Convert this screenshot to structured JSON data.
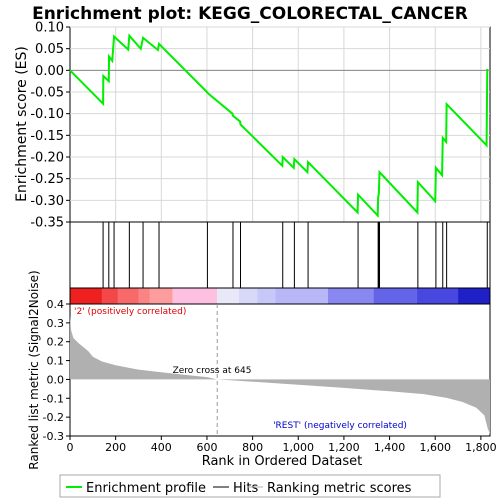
{
  "chart_data": {
    "type": "line",
    "title": "Enrichment plot: KEGG_COLORECTAL_CANCER",
    "es_panel": {
      "ylabel": "Enrichment score (ES)",
      "ylim": [
        -0.35,
        0.1
      ],
      "yticks": [
        0.1,
        0.05,
        0.0,
        -0.05,
        -0.1,
        -0.15,
        -0.2,
        -0.25,
        -0.3,
        -0.35
      ],
      "ytick_labels": [
        "0.10",
        "0.05",
        "0.00",
        "-0.05",
        "-0.10",
        "-0.15",
        "-0.20",
        "-0.25",
        "-0.30",
        "-0.35"
      ],
      "series_color": "#00ee00",
      "points": [
        [
          0,
          0.0
        ],
        [
          145,
          -0.077
        ],
        [
          146,
          -0.013
        ],
        [
          170,
          -0.025
        ],
        [
          171,
          0.032
        ],
        [
          185,
          0.022
        ],
        [
          193,
          0.078
        ],
        [
          255,
          0.048
        ],
        [
          260,
          0.08
        ],
        [
          310,
          0.05
        ],
        [
          320,
          0.075
        ],
        [
          385,
          0.047
        ],
        [
          390,
          0.061
        ],
        [
          600,
          -0.05
        ],
        [
          602,
          -0.052
        ],
        [
          712,
          -0.1
        ],
        [
          714,
          -0.105
        ],
        [
          745,
          -0.118
        ],
        [
          747,
          -0.125
        ],
        [
          930,
          -0.22
        ],
        [
          932,
          -0.2
        ],
        [
          980,
          -0.225
        ],
        [
          983,
          -0.205
        ],
        [
          1040,
          -0.235
        ],
        [
          1043,
          -0.212
        ],
        [
          1260,
          -0.328
        ],
        [
          1262,
          -0.287
        ],
        [
          1348,
          -0.335
        ],
        [
          1350,
          -0.293
        ],
        [
          1353,
          -0.285
        ],
        [
          1356,
          -0.235
        ],
        [
          1522,
          -0.328
        ],
        [
          1524,
          -0.258
        ],
        [
          1600,
          -0.302
        ],
        [
          1603,
          -0.225
        ],
        [
          1630,
          -0.242
        ],
        [
          1633,
          -0.156
        ],
        [
          1648,
          -0.165
        ],
        [
          1650,
          -0.078
        ],
        [
          1825,
          -0.173
        ],
        [
          1828,
          0.003
        ]
      ]
    },
    "hits": [
      145,
      170,
      193,
      260,
      320,
      390,
      602,
      714,
      747,
      932,
      983,
      1043,
      1262,
      1350,
      1353,
      1356,
      1524,
      1603,
      1633,
      1650,
      1828
    ],
    "ranked_panel": {
      "ylabel": "Ranked list metric (Signal2Noise)",
      "ylim": [
        -0.3,
        0.4
      ],
      "yticks": [
        0.4,
        0.3,
        0.2,
        0.1,
        0.0,
        -0.1,
        -0.2,
        -0.3
      ],
      "ytick_labels": [
        "0.4",
        "0.3",
        "0.2",
        "0.1",
        "0.0",
        "-0.1",
        "-0.2",
        "-0.3"
      ],
      "fill_color": "#b0b0b0",
      "curve": [
        [
          0,
          0.34
        ],
        [
          5,
          0.26
        ],
        [
          15,
          0.22
        ],
        [
          40,
          0.19
        ],
        [
          80,
          0.15
        ],
        [
          100,
          0.12
        ],
        [
          140,
          0.095
        ],
        [
          200,
          0.075
        ],
        [
          300,
          0.052
        ],
        [
          400,
          0.038
        ],
        [
          500,
          0.025
        ],
        [
          600,
          0.012
        ],
        [
          645,
          0.0
        ],
        [
          800,
          -0.012
        ],
        [
          1000,
          -0.028
        ],
        [
          1200,
          -0.045
        ],
        [
          1400,
          -0.063
        ],
        [
          1550,
          -0.078
        ],
        [
          1650,
          -0.098
        ],
        [
          1720,
          -0.12
        ],
        [
          1780,
          -0.15
        ],
        [
          1815,
          -0.19
        ],
        [
          1830,
          -0.26
        ],
        [
          1840,
          -0.29
        ]
      ],
      "zero_cross_rank": 645,
      "zero_cross_label": "Zero cross at 645",
      "positive_label": "'2' (positively correlated)",
      "negative_label": "'REST' (negatively correlated)"
    },
    "xaxis": {
      "xlabel": "Rank in Ordered Dataset",
      "xlim": [
        0,
        1840
      ],
      "xticks": [
        0,
        200,
        400,
        600,
        800,
        1000,
        1200,
        1400,
        1600,
        1800
      ],
      "xtick_labels": [
        "0",
        "200",
        "400",
        "600",
        "800",
        "1,000",
        "1,200",
        "1,400",
        "1,600",
        "1,800"
      ]
    },
    "colorbar": {
      "segments": [
        {
          "from": 0,
          "to": 140,
          "color": "#ee2020"
        },
        {
          "from": 140,
          "to": 210,
          "color": "#f44848"
        },
        {
          "from": 210,
          "to": 300,
          "color": "#f86a6a"
        },
        {
          "from": 300,
          "to": 350,
          "color": "#fa8484"
        },
        {
          "from": 350,
          "to": 450,
          "color": "#fc9c9c"
        },
        {
          "from": 450,
          "to": 645,
          "color": "#fdc0e0"
        },
        {
          "from": 645,
          "to": 740,
          "color": "#e8e8f8"
        },
        {
          "from": 740,
          "to": 820,
          "color": "#d8d8f8"
        },
        {
          "from": 820,
          "to": 900,
          "color": "#c8c8f8"
        },
        {
          "from": 900,
          "to": 1130,
          "color": "#b8b8f8"
        },
        {
          "from": 1130,
          "to": 1330,
          "color": "#8888f0"
        },
        {
          "from": 1330,
          "to": 1520,
          "color": "#6464e8"
        },
        {
          "from": 1520,
          "to": 1700,
          "color": "#4848e0"
        },
        {
          "from": 1700,
          "to": 1840,
          "color": "#2020c8"
        }
      ]
    },
    "legend": {
      "position": "bottom",
      "items": [
        {
          "label": "Enrichment profile",
          "color": "#00ee00"
        },
        {
          "label": "Hits",
          "color": "#000000"
        },
        {
          "label": "Ranking metric scores",
          "color": "#b0b0b0"
        }
      ]
    }
  }
}
